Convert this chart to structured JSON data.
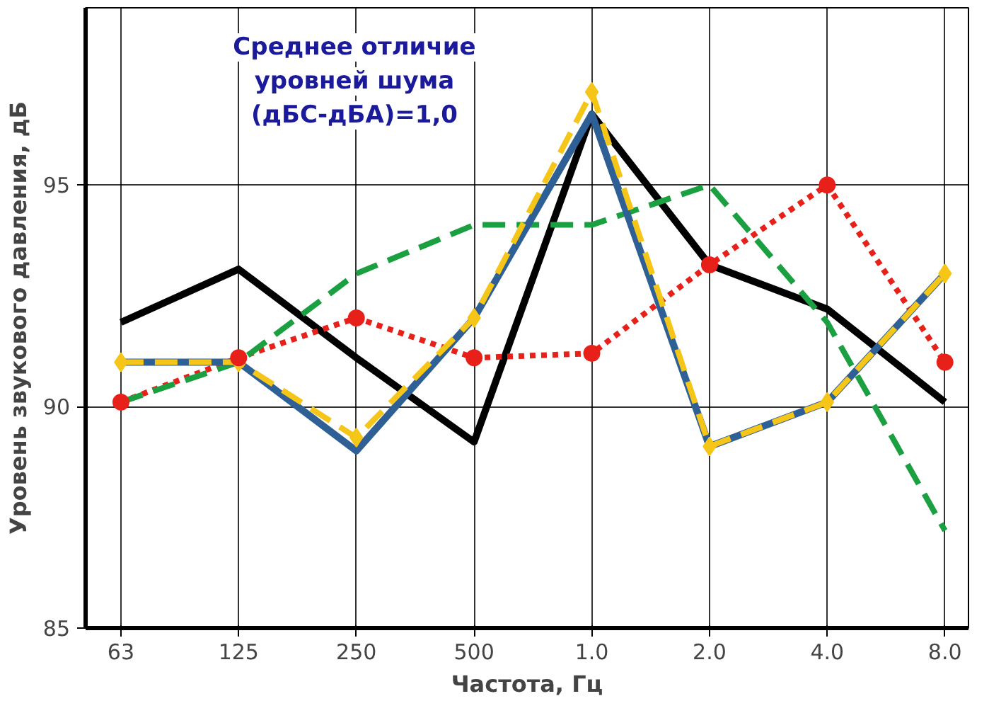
{
  "chart_data": {
    "type": "line",
    "xlabel": "Частота, Гц",
    "ylabel": "Уровень звукового давления, дБ",
    "categories": [
      "63",
      "125",
      "250",
      "500",
      "1.0",
      "2.0",
      "4.0",
      "8.0"
    ],
    "ylim": [
      85,
      99
    ],
    "yticks": [
      85,
      90,
      95
    ],
    "grid": true,
    "annotations": [
      "Среднее отличие\nуровней шума\n(дБС-дБА)=1,0"
    ],
    "series": [
      {
        "color": "#000000",
        "line_style": "solid",
        "marker": "none",
        "values": [
          91.9,
          93.1,
          91.1,
          89.2,
          96.6,
          93.2,
          92.2,
          90.1
        ]
      },
      {
        "color": "#e8201a",
        "line_style": "dotted",
        "marker": "circle",
        "values": [
          90.1,
          91.1,
          92.0,
          91.1,
          91.2,
          93.2,
          95.0,
          91.0
        ]
      },
      {
        "color": "#1aa040",
        "line_style": "dashed",
        "marker": "none",
        "values": [
          90.1,
          91.0,
          93.0,
          94.1,
          94.1,
          95.0,
          91.9,
          87.2
        ]
      },
      {
        "color": "#2e6096",
        "line_style": "solid",
        "marker": "none",
        "values": [
          91.0,
          91.0,
          89.0,
          92.0,
          96.6,
          89.1,
          90.1,
          93.0
        ]
      },
      {
        "color": "#f5c518",
        "line_style": "dashed",
        "marker": "diamond",
        "values": [
          91.0,
          91.0,
          89.3,
          92.0,
          97.1,
          89.1,
          90.1,
          93.0
        ]
      }
    ]
  }
}
